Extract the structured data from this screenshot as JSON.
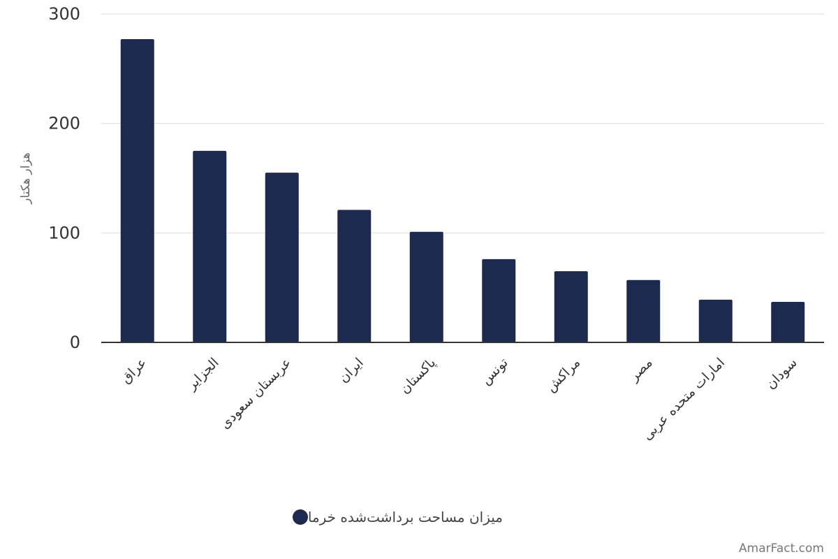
{
  "chart_data": {
    "type": "bar",
    "categories": [
      "عراق",
      "الجزایر",
      "عربستان سعودی",
      "ایران",
      "پاکستان",
      "تونس",
      "مراکش",
      "مصر",
      "امارات متحده عربی",
      "سودان"
    ],
    "series": [
      {
        "name": "میزان مساحت برداشت‌شده خرما",
        "values": [
          277,
          175,
          155,
          121,
          101,
          76,
          65,
          57,
          39,
          37
        ],
        "color": "#1b2a4e"
      }
    ],
    "ylabel": "هزار هکتار",
    "ylim": [
      0,
      300
    ],
    "yticks": [
      0,
      100,
      200,
      300
    ],
    "grid": true,
    "legend_position": "bottom-center"
  },
  "watermark": "AmarFact.com"
}
